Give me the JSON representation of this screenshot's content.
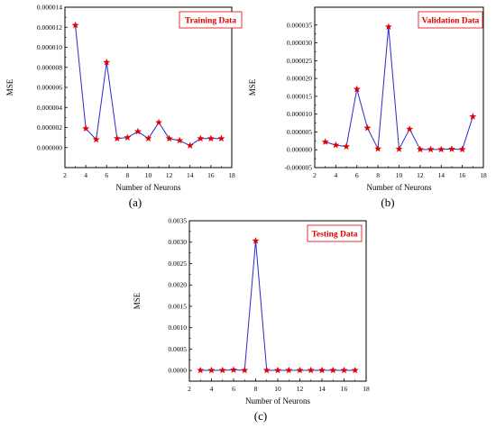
{
  "chart_data": [
    {
      "type": "line",
      "title": "",
      "legend": "Training Data",
      "legend_placement": "top-right",
      "caption": "(a)",
      "xlabel": "Number of Neurons",
      "ylabel": "MSE",
      "xlim": [
        2,
        18
      ],
      "xticks": [
        2,
        4,
        6,
        8,
        10,
        12,
        14,
        16,
        18
      ],
      "ylim": [
        -2e-06,
        1.4e-05
      ],
      "yticks": [
        0.0,
        2e-06,
        4e-06,
        6e-06,
        8e-06,
        1e-05,
        1.2e-05,
        1.4e-05
      ],
      "ytick_labels": [
        "0.000000",
        "0.000002",
        "0.000004",
        "0.000006",
        "0.000008",
        "0.000010",
        "0.000012",
        "0.000014"
      ],
      "line_color": "#2b2bcf",
      "marker_color": "#e00000",
      "x": [
        3,
        4,
        5,
        6,
        7,
        8,
        9,
        10,
        11,
        12,
        13,
        14,
        15,
        16,
        17
      ],
      "y": [
        1.22e-05,
        1.9e-06,
        8e-07,
        8.5e-06,
        9e-07,
        1e-06,
        1.6e-06,
        9e-07,
        2.5e-06,
        9e-07,
        7e-07,
        2e-07,
        9e-07,
        9e-07,
        9e-07
      ]
    },
    {
      "type": "line",
      "title": "",
      "legend": "Validation Data",
      "legend_placement": "top-right",
      "caption": "(b)",
      "xlabel": "Number of Neurons",
      "ylabel": "MSE",
      "xlim": [
        2,
        18
      ],
      "xticks": [
        2,
        4,
        6,
        8,
        10,
        12,
        14,
        16,
        18
      ],
      "ylim": [
        -5e-06,
        4e-05
      ],
      "yticks": [
        -5e-06,
        0.0,
        5e-06,
        1e-05,
        1.5e-05,
        2e-05,
        2.5e-05,
        3e-05,
        3.5e-05
      ],
      "ytick_labels": [
        "-0.000005",
        "0.000000",
        "0.000005",
        "0.000010",
        "0.000015",
        "0.000020",
        "0.000025",
        "0.000030",
        "0.000035"
      ],
      "line_color": "#2b2bcf",
      "marker_color": "#e00000",
      "x": [
        3,
        4,
        5,
        6,
        7,
        8,
        9,
        10,
        11,
        12,
        13,
        14,
        15,
        16,
        17
      ],
      "y": [
        2.2e-06,
        1.3e-06,
        9e-07,
        1.7e-05,
        6.1e-06,
        3e-07,
        3.45e-05,
        2e-07,
        5.8e-06,
        1e-07,
        1e-07,
        1e-07,
        2e-07,
        1e-07,
        9.3e-06
      ]
    },
    {
      "type": "line",
      "title": "",
      "legend": "Testing Data",
      "legend_placement": "top-right",
      "caption": "(c)",
      "xlabel": "Number of Neurons",
      "ylabel": "MSE",
      "xlim": [
        2,
        18
      ],
      "xticks": [
        2,
        4,
        6,
        8,
        10,
        12,
        14,
        16,
        18
      ],
      "ylim": [
        -0.00025,
        0.0035
      ],
      "yticks": [
        0.0,
        0.0005,
        0.001,
        0.0015,
        0.002,
        0.0025,
        0.003,
        0.0035
      ],
      "ytick_labels": [
        "0.0000",
        "0.0005",
        "0.0010",
        "0.0015",
        "0.0020",
        "0.0025",
        "0.0030",
        "0.0035"
      ],
      "line_color": "#2b2bcf",
      "marker_color": "#e00000",
      "x": [
        3,
        4,
        5,
        6,
        7,
        8,
        9,
        10,
        11,
        12,
        13,
        14,
        15,
        16,
        17
      ],
      "y": [
        4e-06,
        4e-06,
        4e-06,
        1.2e-05,
        4e-06,
        0.00303,
        4e-06,
        4e-06,
        4e-06,
        4e-06,
        4e-06,
        4e-06,
        4e-06,
        4e-06,
        4e-06
      ]
    }
  ]
}
